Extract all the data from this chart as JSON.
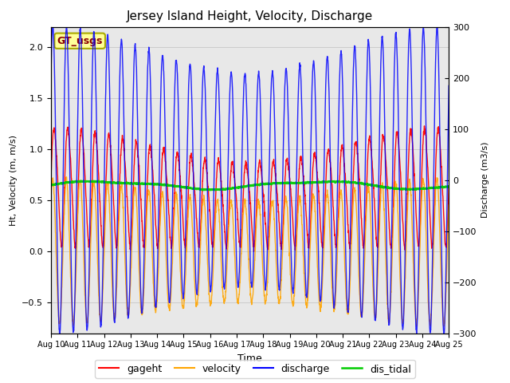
{
  "title": "Jersey Island Height, Velocity, Discharge",
  "xlabel": "Time",
  "ylabel_left": "Ht, Velocity (m, m/s)",
  "ylabel_right": "Discharge (m3/s)",
  "ylim_left": [
    -0.8,
    2.2
  ],
  "ylim_right": [
    -300,
    300
  ],
  "x_tick_labels": [
    "Aug 10",
    "Aug 11",
    "Aug 12",
    "Aug 13",
    "Aug 14",
    "Aug 15",
    "Aug 16",
    "Aug 17",
    "Aug 18",
    "Aug 19",
    "Aug 20",
    "Aug 21",
    "Aug 22",
    "Aug 23",
    "Aug 24",
    "Aug 25"
  ],
  "colors": {
    "gageht": "#FF0000",
    "velocity": "#FFA500",
    "discharge": "#0000FF",
    "dis_tidal": "#00CC00"
  },
  "legend_label": "GT_usgs",
  "legend_box_color": "#FFFF99",
  "legend_box_edge": "#AAAA00",
  "grid_color": "#CCCCCC",
  "bg_color": "#E8E8E8",
  "linewidth": 1.0,
  "tidal_period_hours": 12.42,
  "num_days": 15,
  "semidiurnal_period": 0.517,
  "title_fontsize": 11
}
